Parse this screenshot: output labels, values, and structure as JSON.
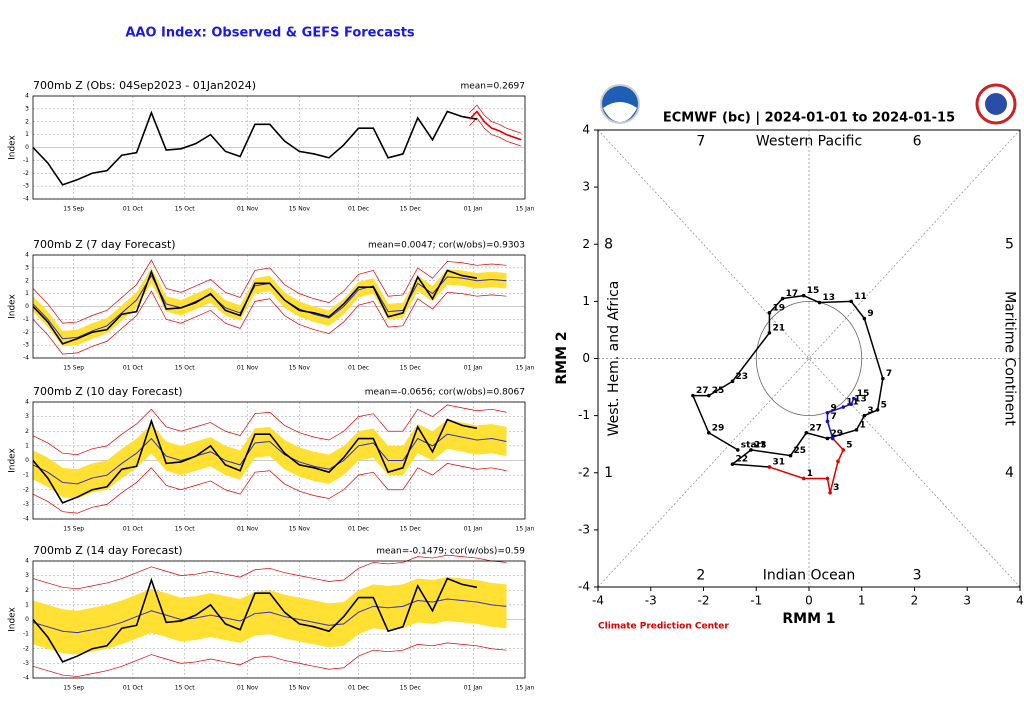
{
  "title": "AAO Index: Observed & GEFS Forecasts",
  "chart_data": [
    {
      "type": "line",
      "title": "700mb Z (Obs: 04Sep2023 - 01Jan2024)",
      "annotation": "mean=0.2697",
      "ylabel": "Index",
      "xlim": [
        0,
        133
      ],
      "ylim": [
        -4,
        4
      ],
      "yticks": [
        -4,
        -3,
        -2,
        -1,
        0,
        1,
        2,
        3,
        4
      ],
      "grid": true,
      "xticks": [
        {
          "value": 11,
          "label": "15 Sep"
        },
        {
          "value": 27,
          "label": "01 Oct"
        },
        {
          "value": 41,
          "label": "15 Oct"
        },
        {
          "value": 58,
          "label": "01 Nov"
        },
        {
          "value": 72,
          "label": "15 Nov"
        },
        {
          "value": 88,
          "label": "01 Dec"
        },
        {
          "value": 102,
          "label": "15 Dec"
        },
        {
          "value": 119,
          "label": "01 Jan"
        },
        {
          "value": 133,
          "label": "15 Jan"
        }
      ],
      "series": [
        {
          "color": "#000000",
          "x": [
            0,
            4,
            8,
            12,
            16,
            20,
            24,
            28,
            32,
            36,
            40,
            44,
            48,
            52,
            56,
            60,
            64,
            68,
            72,
            76,
            80,
            84,
            88,
            92,
            96,
            100,
            104,
            108,
            112,
            116,
            120
          ],
          "values": [
            0,
            -1.2,
            -2.9,
            -2.5,
            -2.0,
            -1.8,
            -0.6,
            -0.4,
            2.7,
            -0.2,
            -0.1,
            0.3,
            1.0,
            -0.3,
            -0.7,
            1.8,
            1.8,
            0.5,
            -0.3,
            -0.5,
            -0.8,
            0.2,
            1.5,
            1.5,
            -0.8,
            -0.5,
            2.3,
            0.6,
            2.8,
            2.4,
            2.2
          ]
        },
        {
          "color": "#e00000",
          "x": [
            118,
            120,
            122,
            124,
            126,
            128,
            130,
            132
          ],
          "values": [
            2.2,
            2.8,
            2.0,
            1.5,
            1.3,
            1.0,
            0.8,
            0.6
          ],
          "outer": 0.5
        }
      ]
    },
    {
      "type": "line",
      "title": "700mb Z (7 day Forecast)",
      "annotation": "mean=0.0047; cor(w/obs)=0.9303",
      "ylabel": "Index",
      "xlim": [
        0,
        133
      ],
      "ylim": [
        -4,
        4
      ],
      "yticks": [
        -4,
        -3,
        -2,
        -1,
        0,
        1,
        2,
        3,
        4
      ],
      "grid": true,
      "xticks": [
        {
          "value": 11,
          "label": "15 Sep"
        },
        {
          "value": 27,
          "label": "01 Oct"
        },
        {
          "value": 41,
          "label": "15 Oct"
        },
        {
          "value": 58,
          "label": "01 Nov"
        },
        {
          "value": 72,
          "label": "15 Nov"
        },
        {
          "value": 88,
          "label": "01 Dec"
        },
        {
          "value": 102,
          "label": "15 Dec"
        },
        {
          "value": 119,
          "label": "01 Jan"
        },
        {
          "value": 133,
          "label": "15 Jan"
        }
      ],
      "series": [
        {
          "color": "#3030c0",
          "x": [
            0,
            4,
            8,
            12,
            16,
            20,
            24,
            28,
            32,
            36,
            40,
            44,
            48,
            52,
            56,
            60,
            64,
            68,
            72,
            76,
            80,
            84,
            88,
            92,
            96,
            100,
            104,
            108,
            112,
            116,
            120,
            124,
            128
          ],
          "values": [
            0.2,
            -1.0,
            -2.5,
            -2.4,
            -1.9,
            -1.5,
            -0.5,
            0.5,
            2.4,
            0.2,
            -0.1,
            0.4,
            0.9,
            -0.1,
            -0.5,
            1.6,
            1.8,
            0.5,
            -0.2,
            -0.6,
            -0.9,
            0,
            1.3,
            1.6,
            -0.4,
            -0.3,
            1.8,
            1.0,
            2.3,
            2.2,
            2.0,
            2.1,
            2.0
          ],
          "spread": 0.6,
          "outer": 1.2
        },
        {
          "color": "#000000",
          "x": [
            0,
            4,
            8,
            12,
            16,
            20,
            24,
            28,
            32,
            36,
            40,
            44,
            48,
            52,
            56,
            60,
            64,
            68,
            72,
            76,
            80,
            84,
            88,
            92,
            96,
            100,
            104,
            108,
            112,
            116,
            120
          ],
          "values": [
            0,
            -1.2,
            -2.9,
            -2.5,
            -2.0,
            -1.8,
            -0.6,
            -0.4,
            2.7,
            -0.2,
            -0.1,
            0.3,
            1.0,
            -0.3,
            -0.7,
            1.8,
            1.8,
            0.5,
            -0.3,
            -0.5,
            -0.8,
            0.2,
            1.5,
            1.5,
            -0.8,
            -0.5,
            2.3,
            0.6,
            2.8,
            2.4,
            2.2
          ]
        }
      ]
    },
    {
      "type": "line",
      "title": "700mb Z (10 day Forecast)",
      "annotation": "mean=-0.0656; cor(w/obs)=0.8067",
      "ylabel": "Index",
      "xlim": [
        0,
        133
      ],
      "ylim": [
        -4,
        4
      ],
      "yticks": [
        -4,
        -3,
        -2,
        -1,
        0,
        1,
        2,
        3,
        4
      ],
      "grid": true,
      "xticks": [
        {
          "value": 11,
          "label": "15 Sep"
        },
        {
          "value": 27,
          "label": "01 Oct"
        },
        {
          "value": 41,
          "label": "15 Oct"
        },
        {
          "value": 58,
          "label": "01 Nov"
        },
        {
          "value": 72,
          "label": "15 Nov"
        },
        {
          "value": 88,
          "label": "01 Dec"
        },
        {
          "value": 102,
          "label": "15 Dec"
        },
        {
          "value": 119,
          "label": "01 Jan"
        },
        {
          "value": 133,
          "label": "15 Jan"
        }
      ],
      "series": [
        {
          "color": "#3030c0",
          "x": [
            0,
            4,
            8,
            12,
            16,
            20,
            24,
            28,
            32,
            36,
            40,
            44,
            48,
            52,
            56,
            60,
            64,
            68,
            72,
            76,
            80,
            84,
            88,
            92,
            96,
            100,
            104,
            108,
            112,
            116,
            120,
            124,
            128
          ],
          "values": [
            -0.3,
            -0.8,
            -1.5,
            -1.6,
            -1.2,
            -1.0,
            -0.2,
            0.5,
            1.5,
            0.3,
            0,
            0.3,
            0.6,
            0,
            -0.3,
            1.2,
            1.3,
            0.4,
            -0.1,
            -0.4,
            -0.6,
            0,
            1.0,
            1.2,
            0,
            0,
            1.5,
            1.0,
            1.8,
            1.6,
            1.4,
            1.5,
            1.3
          ],
          "spread": 1.0,
          "outer": 2.0
        },
        {
          "color": "#000000",
          "x": [
            0,
            4,
            8,
            12,
            16,
            20,
            24,
            28,
            32,
            36,
            40,
            44,
            48,
            52,
            56,
            60,
            64,
            68,
            72,
            76,
            80,
            84,
            88,
            92,
            96,
            100,
            104,
            108,
            112,
            116,
            120
          ],
          "values": [
            0,
            -1.2,
            -2.9,
            -2.5,
            -2.0,
            -1.8,
            -0.6,
            -0.4,
            2.7,
            -0.2,
            -0.1,
            0.3,
            1.0,
            -0.3,
            -0.7,
            1.8,
            1.8,
            0.5,
            -0.3,
            -0.5,
            -0.8,
            0.2,
            1.5,
            1.5,
            -0.8,
            -0.5,
            2.3,
            0.6,
            2.8,
            2.4,
            2.2
          ]
        }
      ]
    },
    {
      "type": "line",
      "title": "700mb Z (14 day Forecast)",
      "annotation": "mean=-0.1479; cor(w/obs)=0.59",
      "ylabel": "Index",
      "xlim": [
        0,
        133
      ],
      "ylim": [
        -4,
        4
      ],
      "yticks": [
        -4,
        -3,
        -2,
        -1,
        0,
        1,
        2,
        3,
        4
      ],
      "grid": true,
      "xticks": [
        {
          "value": 11,
          "label": "15 Sep"
        },
        {
          "value": 27,
          "label": "01 Oct"
        },
        {
          "value": 41,
          "label": "15 Oct"
        },
        {
          "value": 58,
          "label": "01 Nov"
        },
        {
          "value": 72,
          "label": "15 Nov"
        },
        {
          "value": 88,
          "label": "01 Dec"
        },
        {
          "value": 102,
          "label": "15 Dec"
        },
        {
          "value": 119,
          "label": "01 Jan"
        },
        {
          "value": 133,
          "label": "15 Jan"
        }
      ],
      "series": [
        {
          "color": "#3030c0",
          "x": [
            0,
            4,
            8,
            12,
            16,
            20,
            24,
            28,
            32,
            36,
            40,
            44,
            48,
            52,
            56,
            60,
            64,
            68,
            72,
            76,
            80,
            84,
            88,
            92,
            96,
            100,
            104,
            108,
            112,
            116,
            120,
            124,
            128
          ],
          "values": [
            -0.2,
            -0.5,
            -0.8,
            -0.9,
            -0.7,
            -0.5,
            -0.2,
            0.2,
            0.6,
            0.3,
            0,
            0.1,
            0.3,
            0.1,
            -0.1,
            0.4,
            0.5,
            0.2,
            0,
            -0.2,
            -0.4,
            -0.3,
            0.5,
            0.9,
            0.8,
            0.9,
            1.3,
            1.2,
            1.4,
            1.3,
            1.2,
            1.0,
            0.9
          ],
          "spread": 1.5,
          "outer": 3.0
        },
        {
          "color": "#000000",
          "x": [
            0,
            4,
            8,
            12,
            16,
            20,
            24,
            28,
            32,
            36,
            40,
            44,
            48,
            52,
            56,
            60,
            64,
            68,
            72,
            76,
            80,
            84,
            88,
            92,
            96,
            100,
            104,
            108,
            112,
            116,
            120
          ],
          "values": [
            0,
            -1.2,
            -2.9,
            -2.5,
            -2.0,
            -1.8,
            -0.6,
            -0.4,
            2.7,
            -0.2,
            -0.1,
            0.3,
            1.0,
            -0.3,
            -0.7,
            1.8,
            1.8,
            0.5,
            -0.3,
            -0.5,
            -0.8,
            0.2,
            1.5,
            1.5,
            -0.8,
            -0.5,
            2.3,
            0.6,
            2.8,
            2.4,
            2.2
          ]
        }
      ]
    },
    {
      "type": "phase",
      "title": "ECMWF (bc) | 2024-01-01 to 2024-01-15",
      "xlabel": "RMM 1",
      "ylabel": "RMM 2",
      "xlim": [
        -4,
        4
      ],
      "ylim": [
        -4,
        4
      ],
      "xticks": [
        -4,
        -3,
        -2,
        -1,
        0,
        1,
        2,
        3,
        4
      ],
      "yticks": [
        -4,
        -3,
        -2,
        -1,
        0,
        1,
        2,
        3,
        4
      ],
      "phase_labels": [
        "1",
        "2",
        "3",
        "4",
        "5",
        "6",
        "7",
        "8"
      ],
      "region_labels": [
        "Western Pacific",
        "Indian Ocean",
        "West. Hem. and Africa",
        "Maritime Continent"
      ],
      "credit": "Climate Prediction Center",
      "series": [
        {
          "color": "#000000",
          "x": [
            -1.35,
            -1.9,
            -2.2,
            -1.9,
            -1.45,
            -0.75,
            -0.75,
            -0.5,
            -0.1,
            0.2,
            0.8,
            1.05,
            1.4,
            1.3,
            1.05,
            0.9,
            0.35,
            -0.05,
            -0.35,
            -1.1,
            -1.45,
            -0.75
          ],
          "values": [
            -1.6,
            -1.3,
            -0.65,
            -0.65,
            -0.4,
            0.45,
            0.8,
            1.05,
            1.1,
            0.98,
            1.0,
            0.7,
            -0.35,
            -0.9,
            -1.0,
            -1.25,
            -1.4,
            -1.3,
            -1.7,
            -1.6,
            -1.85,
            -1.9
          ],
          "labels": [
            "start",
            "29",
            "27",
            "25",
            "23",
            "21",
            "19",
            "17",
            "15",
            "13",
            "11",
            "9",
            "7",
            "5",
            "3",
            "1",
            "29",
            "27",
            "25",
            "23",
            "22",
            "31"
          ]
        },
        {
          "color": "#e00000",
          "x": [
            -0.75,
            -0.1,
            0.35,
            0.4,
            0.55,
            0.65,
            0.45
          ],
          "values": [
            -1.9,
            -2.1,
            -2.1,
            -2.35,
            -1.8,
            -1.6,
            -1.4
          ],
          "labels": [
            null,
            "1",
            null,
            "3",
            null,
            "5",
            null
          ]
        },
        {
          "color": "#1010d0",
          "x": [
            0.45,
            0.35,
            0.35,
            0.65,
            0.8,
            0.85
          ],
          "values": [
            -1.4,
            -1.1,
            -0.95,
            -0.85,
            -0.8,
            -0.7
          ],
          "labels": [
            null,
            "7",
            "9",
            "11",
            "13",
            "15"
          ]
        }
      ]
    }
  ]
}
